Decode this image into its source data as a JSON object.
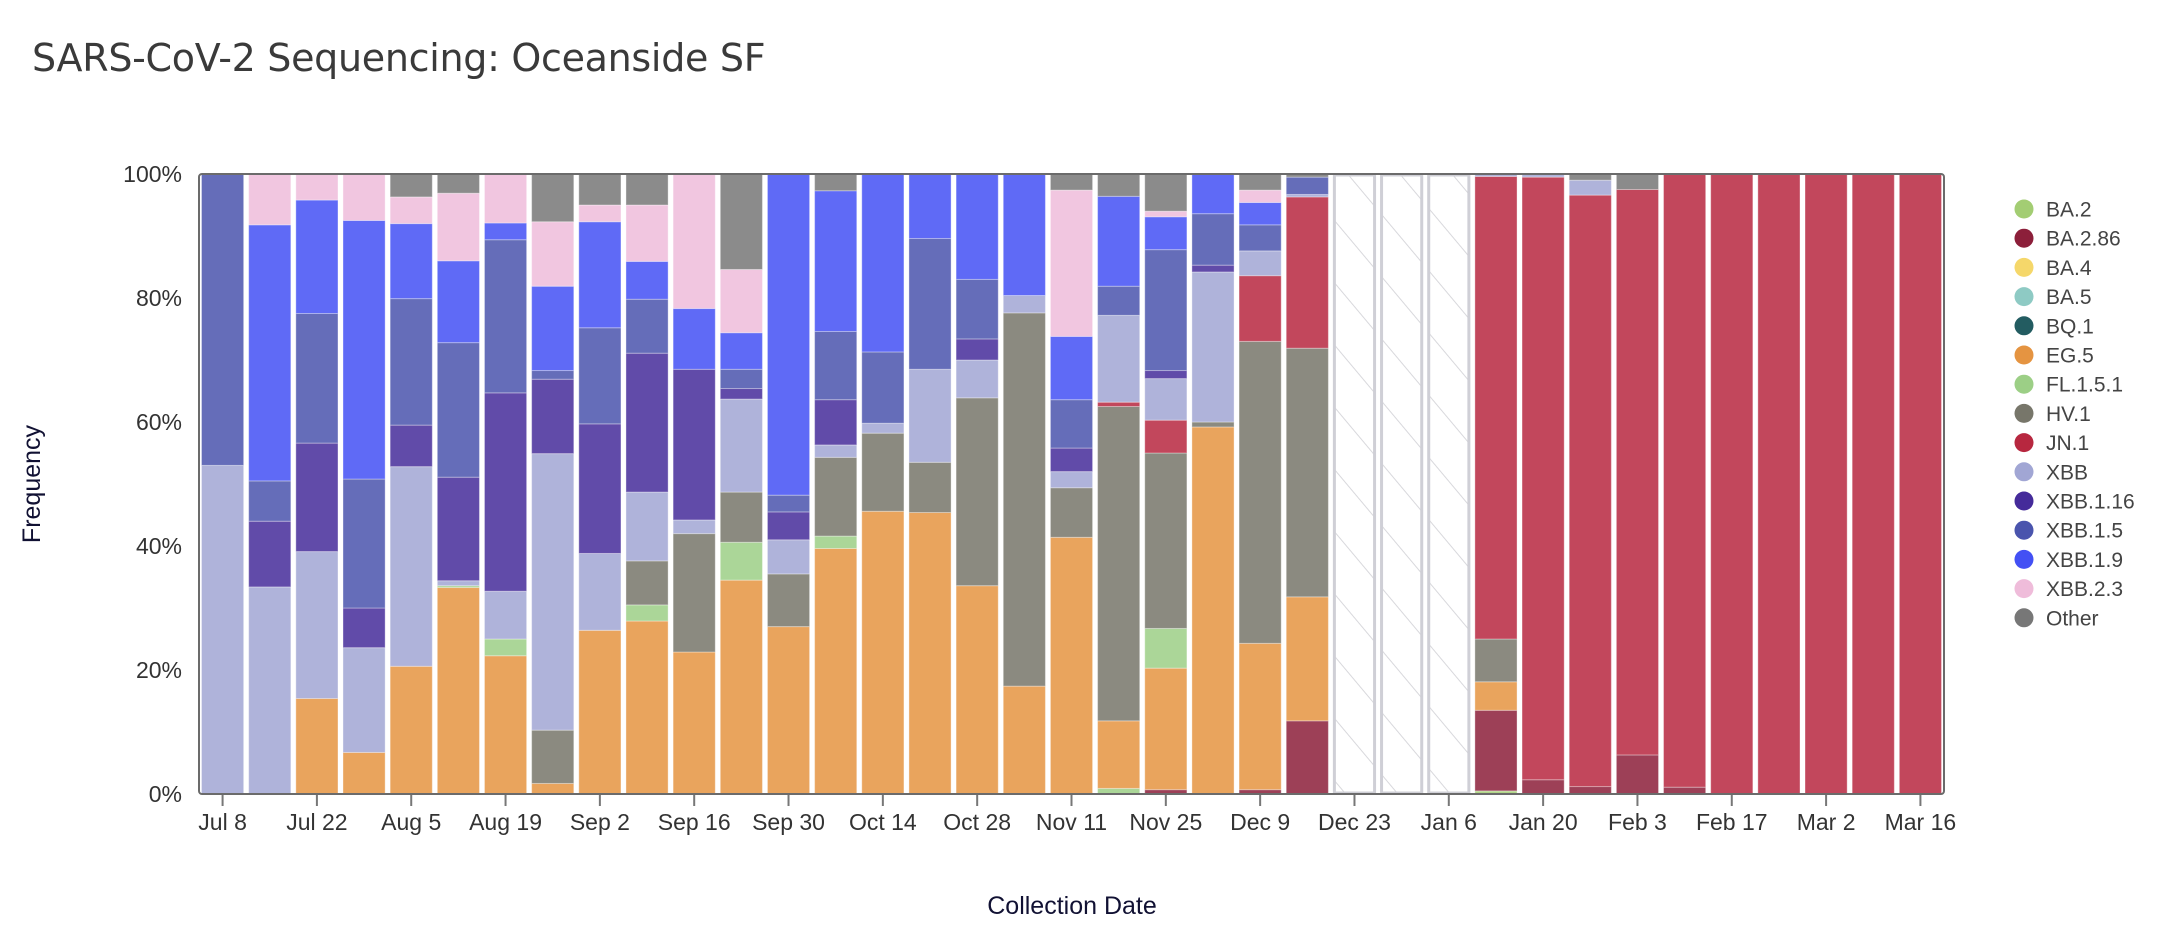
{
  "page": {
    "title": "SARS-CoV-2 Sequencing: Oceanside SF"
  },
  "chart_data": {
    "type": "bar",
    "stacked": true,
    "normalized": true,
    "title": "SARS-CoV-2 Sequencing: Oceanside SF",
    "xlabel": "Collection Date",
    "ylabel": "Frequency",
    "ylim": [
      0,
      100
    ],
    "yticks": [
      "0%",
      "20%",
      "40%",
      "60%",
      "80%",
      "100%"
    ],
    "xticks": [
      "Jul 8",
      "Jul 22",
      "Aug 5",
      "Aug 19",
      "Sep 2",
      "Sep 16",
      "Sep 30",
      "Oct 14",
      "Oct 28",
      "Nov 11",
      "Nov 25",
      "Dec 9",
      "Dec 23",
      "Jan 6",
      "Jan 20",
      "Feb 3",
      "Feb 17",
      "Mar 2",
      "Mar 16"
    ],
    "legend_position": "right",
    "lineages": [
      {
        "name": "BA.2",
        "color": "#a3cd73"
      },
      {
        "name": "BA.2.86",
        "color": "#8c1f3a"
      },
      {
        "name": "BA.4",
        "color": "#f5d76a"
      },
      {
        "name": "BA.5",
        "color": "#8ecac4"
      },
      {
        "name": "BQ.1",
        "color": "#235c61"
      },
      {
        "name": "EG.5",
        "color": "#e59441"
      },
      {
        "name": "FL.1.5.1",
        "color": "#9ccf86"
      },
      {
        "name": "HV.1",
        "color": "#77766a"
      },
      {
        "name": "JN.1",
        "color": "#b7273f"
      },
      {
        "name": "XBB",
        "color": "#a1a6d4"
      },
      {
        "name": "XBB.1.16",
        "color": "#452b9a"
      },
      {
        "name": "XBB.1.5",
        "color": "#4a54ad"
      },
      {
        "name": "XBB.1.9",
        "color": "#4350f4"
      },
      {
        "name": "XBB.2.3",
        "color": "#efbcda"
      },
      {
        "name": "Other",
        "color": "#777777"
      }
    ],
    "categories": [
      "Jul 8",
      "Jul 15",
      "Jul 22",
      "Jul 29",
      "Aug 5",
      "Aug 12",
      "Aug 19",
      "Aug 26",
      "Sep 2",
      "Sep 9",
      "Sep 16",
      "Sep 23",
      "Sep 30",
      "Oct 7",
      "Oct 14",
      "Oct 21",
      "Oct 28",
      "Nov 4",
      "Nov 11",
      "Nov 18",
      "Nov 25",
      "Dec 2",
      "Dec 9",
      "Dec 16",
      "Dec 23",
      "Dec 30",
      "Jan 6",
      "Jan 13",
      "Jan 20",
      "Jan 27",
      "Feb 3",
      "Feb 10",
      "Feb 17",
      "Feb 24",
      "Mar 2",
      "Mar 9",
      "Mar 16"
    ],
    "weeks": [
      {
        "date": "Jul 8",
        "values": {
          "XBB": 53.0,
          "XBB.1.5": 47.0
        }
      },
      {
        "date": "Jul 15",
        "values": {
          "XBB": 33.4,
          "XBB.1.16": 10.6,
          "XBB.1.5": 6.5,
          "XBB.1.9": 41.3,
          "XBB.2.3": 8.2
        }
      },
      {
        "date": "Jul 22",
        "values": {
          "EG.5": 15.4,
          "XBB": 23.7,
          "XBB.1.16": 17.5,
          "XBB.1.5": 20.9,
          "XBB.1.9": 18.3,
          "XBB.2.3": 4.2
        }
      },
      {
        "date": "Jul 29",
        "values": {
          "EG.5": 6.7,
          "XBB": 16.9,
          "XBB.1.16": 6.4,
          "XBB.1.5": 20.8,
          "XBB.1.9": 41.7,
          "XBB.2.3": 7.5
        }
      },
      {
        "date": "Aug 5",
        "values": {
          "EG.5": 20.6,
          "XBB": 32.2,
          "XBB.1.16": 6.7,
          "XBB.1.5": 20.4,
          "XBB.1.9": 12.1,
          "XBB.2.3": 4.3,
          "Other": 3.7
        }
      },
      {
        "date": "Aug 12",
        "values": {
          "EG.5": 33.3,
          "FL.1.5.1": 0.3,
          "XBB": 0.8,
          "XBB.1.16": 16.7,
          "XBB.1.5": 21.7,
          "XBB.1.9": 13.2,
          "XBB.2.3": 10.9,
          "Other": 3.1
        }
      },
      {
        "date": "Aug 19",
        "values": {
          "EG.5": 22.3,
          "FL.1.5.1": 2.7,
          "XBB": 7.7,
          "XBB.1.16": 32.0,
          "XBB.1.5": 24.7,
          "XBB.1.9": 2.7,
          "XBB.2.3": 7.9
        }
      },
      {
        "date": "Aug 26",
        "values": {
          "EG.5": 1.7,
          "HV.1": 8.6,
          "XBB": 44.6,
          "XBB.1.16": 12.0,
          "XBB.1.5": 1.4,
          "XBB.1.9": 13.6,
          "XBB.2.3": 10.4,
          "Other": 7.7
        }
      },
      {
        "date": "Sep 2",
        "values": {
          "EG.5": 26.4,
          "XBB": 12.4,
          "XBB.1.16": 20.9,
          "XBB.1.5": 15.5,
          "XBB.1.9": 17.1,
          "XBB.2.3": 2.7,
          "Other": 5.0
        }
      },
      {
        "date": "Sep 9",
        "values": {
          "EG.5": 27.9,
          "FL.1.5.1": 2.6,
          "HV.1": 7.1,
          "XBB": 11.1,
          "XBB.1.16": 22.4,
          "XBB.1.5": 8.7,
          "XBB.1.9": 6.1,
          "XBB.2.3": 9.1,
          "Other": 5.0
        }
      },
      {
        "date": "Sep 16",
        "values": {
          "EG.5": 22.9,
          "HV.1": 19.1,
          "XBB": 2.2,
          "XBB.1.16": 24.3,
          "XBB.1.9": 9.8,
          "XBB.2.3": 21.7
        }
      },
      {
        "date": "Sep 23",
        "values": {
          "EG.5": 34.5,
          "FL.1.5.1": 6.1,
          "HV.1": 8.1,
          "XBB": 15.0,
          "XBB.1.16": 1.7,
          "XBB.1.5": 3.1,
          "XBB.1.9": 5.9,
          "XBB.2.3": 10.2,
          "Other": 15.4
        }
      },
      {
        "date": "Sep 30",
        "values": {
          "EG.5": 27.0,
          "HV.1": 8.5,
          "XBB": 5.5,
          "XBB.1.16": 4.5,
          "XBB.1.5": 2.7,
          "XBB.1.9": 51.8
        }
      },
      {
        "date": "Oct 7",
        "values": {
          "EG.5": 39.6,
          "FL.1.5.1": 2.0,
          "HV.1": 12.7,
          "XBB": 2.0,
          "XBB.1.16": 7.3,
          "XBB.1.5": 11.0,
          "XBB.1.9": 22.7,
          "Other": 2.7
        }
      },
      {
        "date": "Oct 14",
        "values": {
          "EG.5": 45.6,
          "HV.1": 12.6,
          "XBB": 1.6,
          "XBB.1.5": 11.5,
          "XBB.1.9": 28.7
        }
      },
      {
        "date": "Oct 21",
        "values": {
          "EG.5": 45.4,
          "HV.1": 8.1,
          "XBB": 15.0,
          "XBB.1.5": 21.1,
          "XBB.1.9": 10.4
        }
      },
      {
        "date": "Oct 28",
        "values": {
          "EG.5": 33.6,
          "HV.1": 30.3,
          "XBB": 6.1,
          "XBB.1.16": 3.4,
          "XBB.1.5": 9.6,
          "XBB.1.9": 17.0
        }
      },
      {
        "date": "Nov 4",
        "values": {
          "EG.5": 17.4,
          "HV.1": 60.2,
          "XBB": 2.8,
          "XBB.1.9": 19.6
        }
      },
      {
        "date": "Nov 11",
        "values": {
          "EG.5": 41.4,
          "HV.1": 8.0,
          "XBB": 2.6,
          "XBB.1.16": 3.8,
          "XBB.1.5": 7.8,
          "XBB.1.9": 10.2,
          "XBB.2.3": 23.6,
          "Other": 2.6
        }
      },
      {
        "date": "Nov 18",
        "values": {
          "FL.1.5.1": 0.9,
          "EG.5": 10.9,
          "HV.1": 50.7,
          "JN.1": 0.7,
          "XBB": 14.0,
          "XBB.1.5": 4.7,
          "XBB.1.9": 14.5,
          "Other": 3.6
        }
      },
      {
        "date": "Nov 25",
        "values": {
          "BA.2.86": 0.7,
          "EG.5": 19.6,
          "FL.1.5.1": 6.4,
          "HV.1": 28.3,
          "JN.1": 5.3,
          "XBB": 6.7,
          "XBB.1.16": 1.3,
          "XBB.1.5": 19.5,
          "XBB.1.9": 5.3,
          "XBB.2.3": 0.9,
          "Other": 6.0
        }
      },
      {
        "date": "Dec 2",
        "values": {
          "EG.5": 59.2,
          "HV.1": 0.8,
          "XBB": 24.2,
          "XBB.1.16": 1.1,
          "XBB.1.5": 8.3,
          "XBB.1.9": 6.4
        }
      },
      {
        "date": "Dec 9",
        "values": {
          "BA.2.86": 0.7,
          "EG.5": 23.6,
          "HV.1": 48.7,
          "JN.1": 10.6,
          "XBB": 4.0,
          "XBB.1.5": 4.2,
          "XBB.1.9": 3.6,
          "XBB.2.3": 2.0,
          "Other": 2.6
        }
      },
      {
        "date": "Dec 16",
        "values": {
          "BA.2.86": 11.8,
          "EG.5": 20.0,
          "HV.1": 40.1,
          "JN.1": 24.4,
          "XBB": 0.4,
          "XBB.1.5": 2.8,
          "Other": 0.5
        }
      },
      {
        "date": "Dec 23",
        "no_data": true
      },
      {
        "date": "Dec 30",
        "no_data": true
      },
      {
        "date": "Jan 6",
        "no_data": true
      },
      {
        "date": "Jan 13",
        "values": {
          "BA.2": 0.5,
          "BA.2.86": 13.0,
          "EG.5": 4.6,
          "HV.1": 6.9,
          "JN.1": 74.6,
          "XBB": 0.4
        }
      },
      {
        "date": "Jan 20",
        "values": {
          "BA.2.86": 2.3,
          "JN.1": 97.2,
          "XBB": 0.5
        }
      },
      {
        "date": "Jan 27",
        "values": {
          "BA.2.86": 1.2,
          "JN.1": 95.4,
          "XBB": 2.4,
          "Other": 1.0
        }
      },
      {
        "date": "Feb 3",
        "values": {
          "BA.2.86": 6.3,
          "JN.1": 91.2,
          "Other": 2.5
        }
      },
      {
        "date": "Feb 10",
        "values": {
          "BA.2.86": 1.1,
          "JN.1": 98.9
        }
      },
      {
        "date": "Feb 17",
        "values": {
          "JN.1": 100
        }
      },
      {
        "date": "Feb 24",
        "values": {
          "JN.1": 100
        }
      },
      {
        "date": "Mar 2",
        "values": {
          "JN.1": 100
        }
      },
      {
        "date": "Mar 9",
        "values": {
          "JN.1": 100
        }
      },
      {
        "date": "Mar 16",
        "values": {
          "JN.1": 100
        }
      }
    ]
  }
}
